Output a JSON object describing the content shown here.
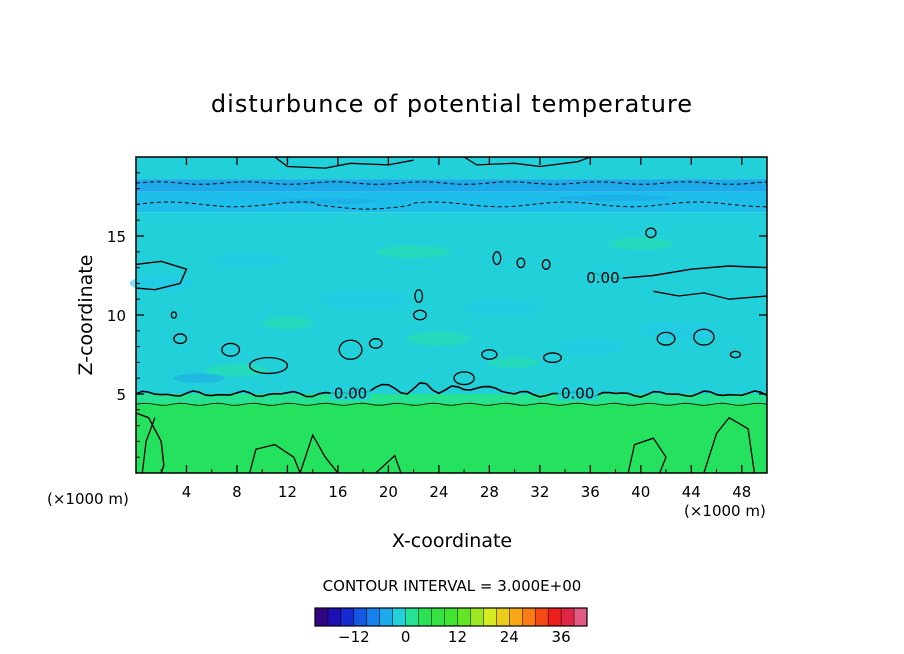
{
  "chart_data": {
    "type": "contour",
    "title": "disturbunce of potential temperature",
    "xlabel": "X-coordinate",
    "ylabel": "Z-coordinate",
    "x_unit_label": "(×1000 m)",
    "y_unit_label": "(×1000 m)",
    "xlim": [
      0,
      50
    ],
    "ylim": [
      0,
      20
    ],
    "x_ticks": [
      4,
      8,
      12,
      16,
      20,
      24,
      28,
      32,
      36,
      40,
      44,
      48
    ],
    "y_ticks": [
      5,
      10,
      15
    ],
    "x_tick_labels": [
      "4",
      "8",
      "12",
      "16",
      "20",
      "24",
      "28",
      "32",
      "36",
      "40",
      "44",
      "48"
    ],
    "y_tick_labels": [
      "5",
      "10",
      "15"
    ],
    "contour_interval_text": "CONTOUR INTERVAL = 3.000E+00",
    "contour_labels": [
      {
        "text": "0.00",
        "x": 17.0,
        "y": 5.1
      },
      {
        "text": "0.00",
        "x": 35.0,
        "y": 5.1
      },
      {
        "text": "0.00",
        "x": 37.0,
        "y": 12.4
      }
    ],
    "bands": [
      {
        "z0": 0.0,
        "z1": 4.4,
        "value": 3
      },
      {
        "z0": 4.4,
        "z1": 5.0,
        "value": 1.5
      },
      {
        "z0": 5.0,
        "z1": 16.5,
        "value": -1.5
      },
      {
        "z0": 16.5,
        "z1": 17.8,
        "value": -3
      },
      {
        "z0": 17.8,
        "z1": 18.6,
        "value": -4.5
      },
      {
        "z0": 18.6,
        "z1": 20.0,
        "value": -1.5
      }
    ],
    "colorbar": {
      "min": -21,
      "max": 42,
      "interval": 3,
      "tick_values": [
        -12,
        0,
        12,
        24,
        36
      ],
      "tick_labels": [
        "−12",
        "0",
        "12",
        "24",
        "36"
      ]
    },
    "colors": {
      "band_green": "#25e25e",
      "band_teal": "#28e0a6",
      "band_cyan": "#26e1d4",
      "band_light_blue": "#22c8ea",
      "band_mid_blue": "#1ba8e8"
    }
  }
}
